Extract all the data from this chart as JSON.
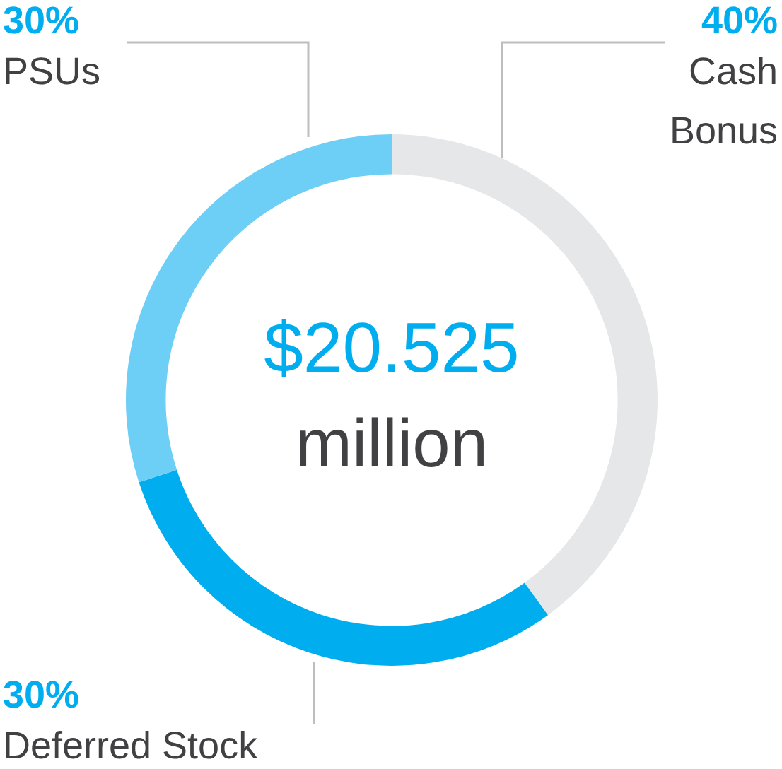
{
  "chart_data": {
    "type": "donut",
    "categories": [
      "Cash Bonus",
      "Deferred Stock",
      "PSUs"
    ],
    "values": [
      40,
      30,
      30
    ],
    "colors": [
      "#e6e7e8",
      "#00aeef",
      "#6dcff6"
    ],
    "value_labels": [
      "40%",
      "30%",
      "30%"
    ],
    "annotations": [
      "$20.525",
      "million"
    ],
    "legend": false
  }
}
